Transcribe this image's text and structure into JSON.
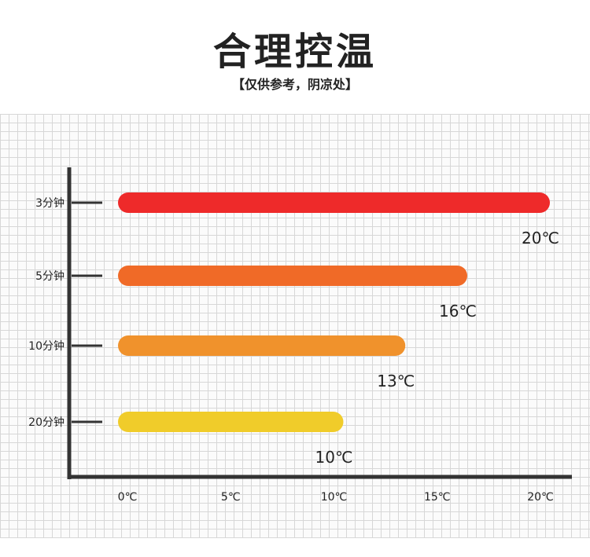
{
  "header": {
    "title": "合理控温",
    "subtitle": "【仅供参考，阴凉处】"
  },
  "chart_data": {
    "type": "bar",
    "orientation": "horizontal",
    "categories": [
      "3分钟",
      "5分钟",
      "10分钟",
      "20分钟"
    ],
    "values": [
      20,
      16,
      13,
      10
    ],
    "value_labels": [
      "20℃",
      "16℃",
      "13℃",
      "10℃"
    ],
    "x_ticks": [
      {
        "value": 0,
        "label": "0℃"
      },
      {
        "value": 5,
        "label": "5℃"
      },
      {
        "value": 10,
        "label": "10℃"
      },
      {
        "value": 15,
        "label": "15℃"
      },
      {
        "value": 20,
        "label": "20℃"
      }
    ],
    "xlim": [
      0,
      20
    ],
    "bar_colors": [
      "#ee2a2a",
      "#f06a27",
      "#f0922c",
      "#f0cc2a"
    ],
    "axis_color": "#333333",
    "grid": true,
    "grid_color": "#d7d7d7"
  }
}
